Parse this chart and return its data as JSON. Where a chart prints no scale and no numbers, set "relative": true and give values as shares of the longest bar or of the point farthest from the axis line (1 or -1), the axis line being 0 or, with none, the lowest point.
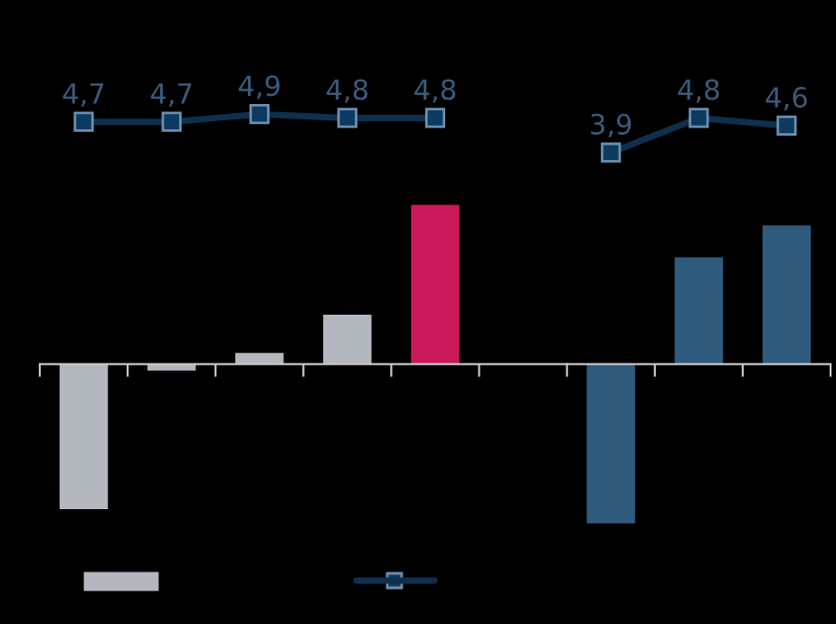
{
  "chart_data": [
    {
      "type": "line",
      "categories": [
        null,
        null,
        null,
        null,
        null
      ],
      "marker": "square",
      "line_style": "solid",
      "series": [
        {
          "color": "#0f2f4f",
          "values": [
            4.7,
            4.7,
            4.9,
            4.8,
            4.8
          ],
          "value_labels": [
            "4,7",
            "4,7",
            "4,9",
            "4,8",
            "4,8"
          ]
        }
      ]
    },
    {
      "type": "line",
      "categories": [
        null,
        null,
        null
      ],
      "marker": "square",
      "line_style": "solid",
      "series": [
        {
          "color": "#0f2f4f",
          "values": [
            3.9,
            4.8,
            4.6
          ],
          "value_labels": [
            "3,9",
            "4,8",
            "4,6"
          ]
        }
      ]
    },
    {
      "type": "bar",
      "relative": true,
      "categories": [
        null,
        null,
        null,
        null,
        null
      ],
      "series": [
        {
          "color": "#b3b8bf",
          "colors": [
            "#b3b8bf",
            "#b3b8bf",
            "#b3b8bf",
            "#b3b8bf",
            "#c8185a"
          ],
          "values": [
            -0.91,
            -0.04,
            0.07,
            0.31,
            1
          ]
        }
      ]
    },
    {
      "type": "bar",
      "relative": true,
      "categories": [
        null,
        null,
        null
      ],
      "series": [
        {
          "color": "#2f5a7c",
          "values": [
            -1,
            0.67,
            0.87
          ]
        }
      ]
    }
  ]
}
